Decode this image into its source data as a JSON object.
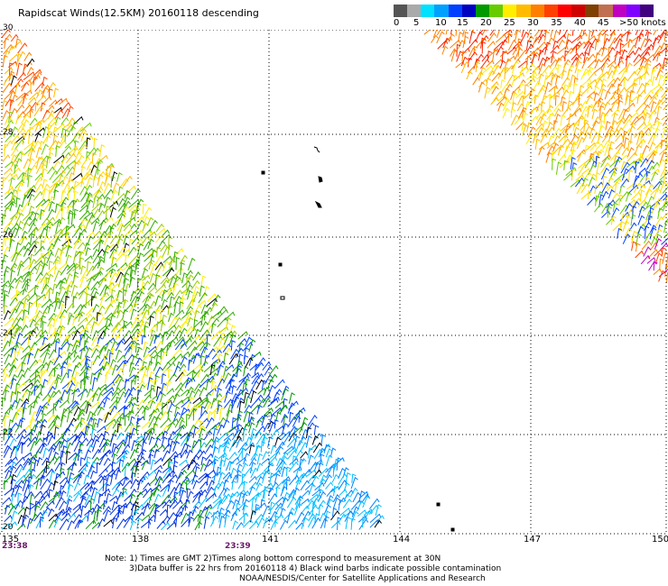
{
  "title": "Rapidscat Winds(12.5KM) 20160118 descending",
  "legend": {
    "colors": [
      "#555555",
      "#aaaaaa",
      "#00e0ff",
      "#00a0ff",
      "#0040ff",
      "#0000c0",
      "#009900",
      "#66cc00",
      "#ffee00",
      "#ffbb00",
      "#ff8000",
      "#ff4000",
      "#ff0000",
      "#d00000",
      "#804000",
      "#c07050",
      "#c000c0",
      "#8000ff",
      "#400080"
    ],
    "labels": [
      "0",
      "5",
      "10",
      "15",
      "20",
      "25",
      "30",
      "35",
      "40",
      "45",
      ">50 knots"
    ]
  },
  "map": {
    "lat_labels": [
      "30",
      "28",
      "26",
      "24",
      "22",
      "20"
    ],
    "lon_labels": [
      "135",
      "138",
      "141",
      "144",
      "147",
      "150"
    ],
    "time_labels": [
      "23:38",
      "23:39"
    ]
  },
  "notes": {
    "line1": "Note: 1) Times are GMT 2)Times along bottom correspond to measurement at 30N",
    "line2": "3)Data buffer is 22 hrs from 20160118 4) Black wind barbs indicate possible contamination",
    "line3": "NOAA/NESDIS/Center for Satellite Applications and Research"
  }
}
